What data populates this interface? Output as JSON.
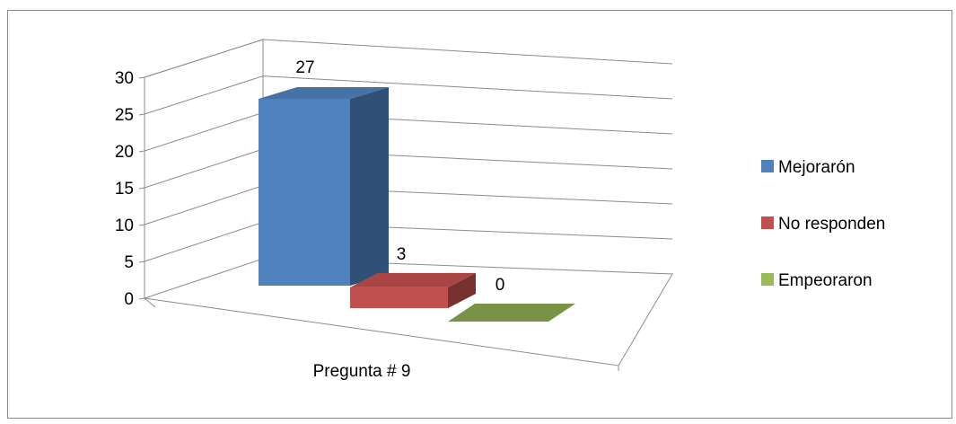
{
  "chart_data": {
    "type": "bar",
    "title": "",
    "xlabel": "",
    "ylabel": "",
    "categories": [
      "Pregunta # 9"
    ],
    "ylim": [
      0,
      30
    ],
    "y_ticks": [
      "0",
      "5",
      "10",
      "15",
      "20",
      "25",
      "30"
    ],
    "three_d": true,
    "grid": true,
    "legend_position": "right",
    "series": [
      {
        "name": "Mejorarón",
        "values": [
          27
        ],
        "color": "#4f81bd"
      },
      {
        "name": "No responden",
        "values": [
          3
        ],
        "color": "#c0504d"
      },
      {
        "name": "Empeoraron",
        "values": [
          0
        ],
        "color": "#9bbb59"
      }
    ]
  }
}
